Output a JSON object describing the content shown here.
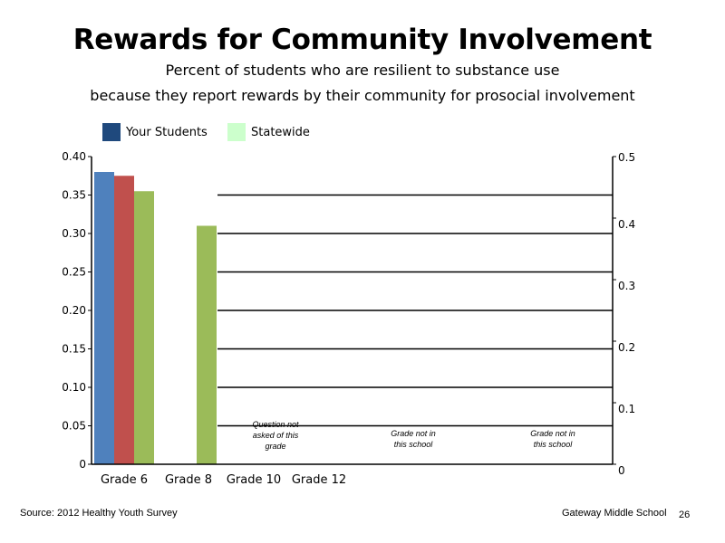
{
  "title": "Rewards for Community Involvement",
  "subtitle_line1": "Percent of students who are resilient to substance use",
  "subtitle_line2": "because they report rewards by their community for prosocial involvement",
  "legend": [
    {
      "label": "Your Students",
      "color": "#1F497D"
    },
    {
      "label": "Statewide",
      "color": "#CCFFCC"
    }
  ],
  "footer": {
    "source": "Source: 2012 Healthy Youth Survey",
    "school": "Gateway Middle  School",
    "page": "26"
  },
  "chart_data": {
    "type": "bar",
    "categories": [
      "Grade 6",
      "Grade 8",
      "Grade 10",
      "Grade 12"
    ],
    "series": [
      {
        "color": "#4F81BD",
        "values": [
          0.38,
          null,
          null,
          null
        ]
      },
      {
        "color": "#C0504D",
        "values": [
          0.375,
          null,
          null,
          null
        ]
      },
      {
        "color": "#9BBB59",
        "values": [
          0.355,
          0.31,
          null,
          null
        ]
      }
    ],
    "ylim": [
      0,
      0.4
    ],
    "y_ticks": [
      "0",
      "0.05",
      "0.10",
      "0.15",
      "0.20",
      "0.25",
      "0.30",
      "0.35",
      "0.40"
    ],
    "y2lim": [
      0,
      0.5
    ],
    "y2_ticks": [
      "0",
      "0.1",
      "0.2",
      "0.3",
      "0.4",
      "0.5"
    ],
    "grid": true,
    "legend_position": "top-left",
    "annotations": [
      {
        "lines": [
          "Question not",
          "asked of this",
          "grade"
        ]
      },
      {
        "lines": [
          "Grade not in",
          "this school"
        ]
      },
      {
        "lines": [
          "Grade not in",
          "this school"
        ]
      }
    ]
  }
}
